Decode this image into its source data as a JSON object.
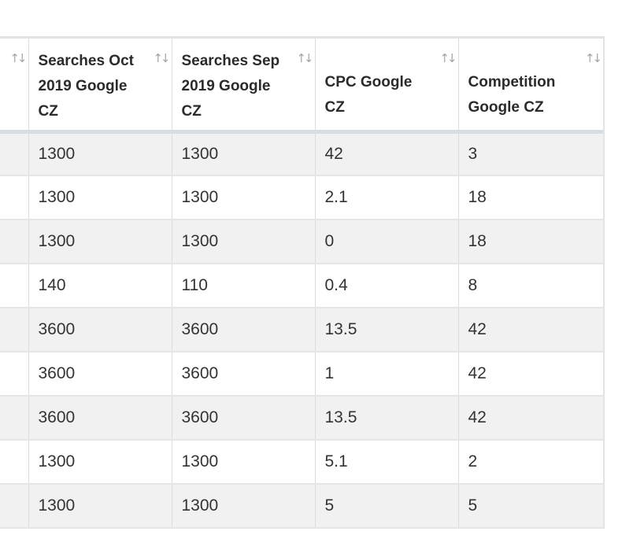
{
  "table": {
    "columns": [
      {
        "label": "",
        "sort_icon": "sort-arrows-icon"
      },
      {
        "label": "Searches Oct 2019 Google CZ",
        "sort_icon": "sort-arrows-icon"
      },
      {
        "label": "Searches Sep 2019 Google CZ",
        "sort_icon": "sort-arrows-icon"
      },
      {
        "label": "CPC Google CZ",
        "sort_icon": "sort-arrows-icon"
      },
      {
        "label": "Competition Google CZ",
        "sort_icon": "sort-arrows-icon"
      }
    ],
    "rows": [
      [
        "",
        "1300",
        "1300",
        "42",
        "3"
      ],
      [
        "",
        "1300",
        "1300",
        "2.1",
        "18"
      ],
      [
        "",
        "1300",
        "1300",
        "0",
        "18"
      ],
      [
        "",
        "140",
        "110",
        "0.4",
        "8"
      ],
      [
        "",
        "3600",
        "3600",
        "13.5",
        "42"
      ],
      [
        "",
        "3600",
        "3600",
        "1",
        "42"
      ],
      [
        "",
        "3600",
        "3600",
        "13.5",
        "42"
      ],
      [
        "",
        "1300",
        "1300",
        "5.1",
        "2"
      ],
      [
        "",
        "1300",
        "1300",
        "5",
        "5"
      ]
    ]
  },
  "colors": {
    "header_border": "#d6dde3",
    "row_stripe": "#f1f1f1",
    "grid_line": "#dcdcdc",
    "sort_icon": "#a6a6a6"
  }
}
